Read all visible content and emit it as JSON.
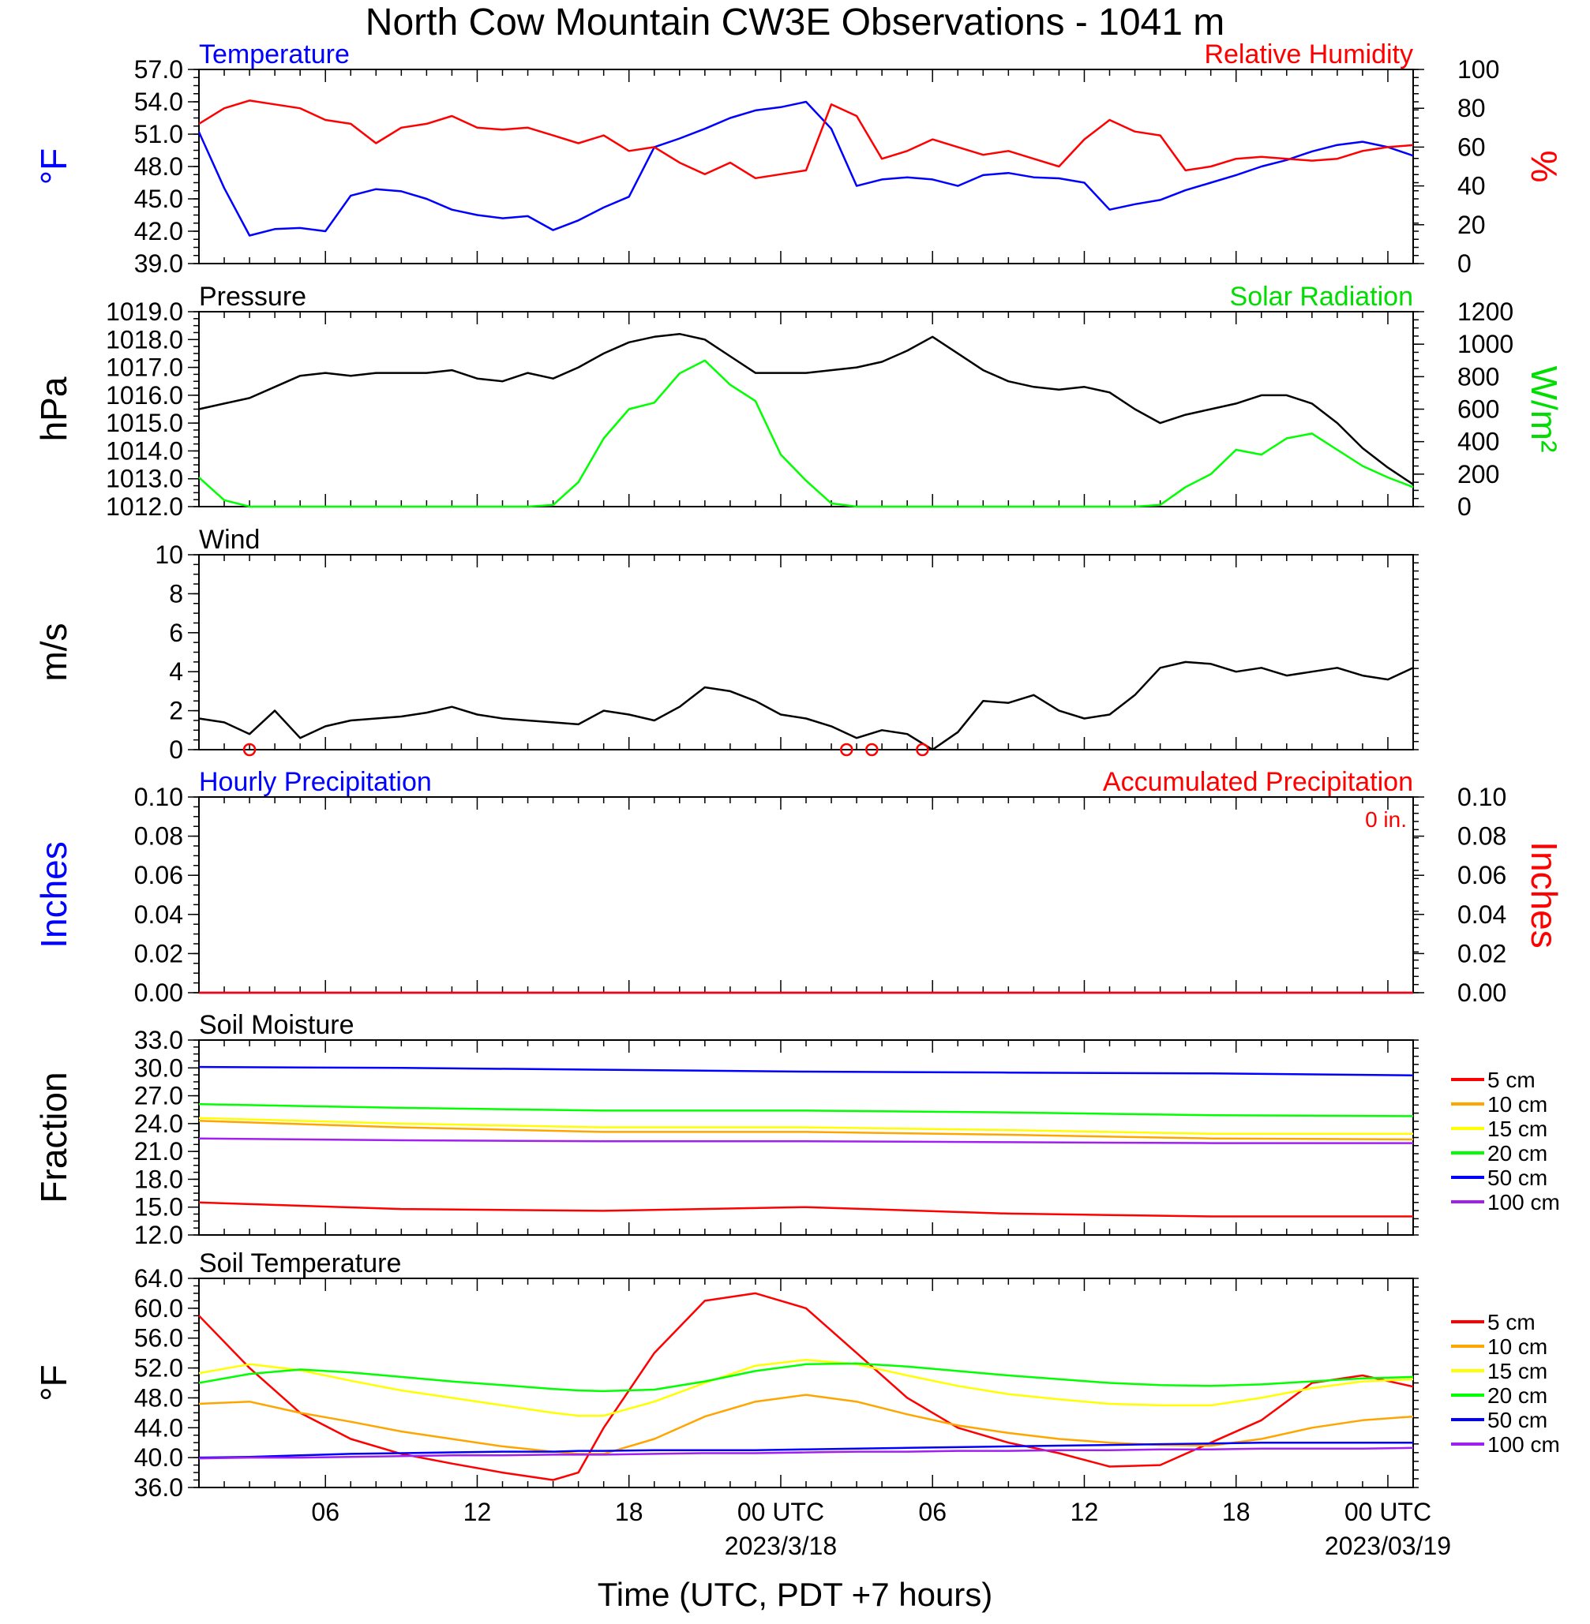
{
  "title": "North Cow Mountain CW3E Observations - 1041 m",
  "xlabel": "Time (UTC, PDT +7 hours)",
  "x_ticks": [
    "06",
    "12",
    "18",
    "00 UTC",
    "06",
    "12",
    "18",
    "00 UTC"
  ],
  "date_labels": [
    "2023/3/18",
    "2023/03/19"
  ],
  "chart_data": [
    {
      "type": "line",
      "panel": "temperature-humidity",
      "title_left": "Temperature",
      "title_right": "Relative Humidity",
      "ylabel_left": "°F",
      "ylabel_right": "%",
      "ylim_left": [
        39.0,
        57.0
      ],
      "ylim_right": [
        0,
        100
      ],
      "yticks_left": [
        "39.0",
        "42.0",
        "45.0",
        "48.0",
        "51.0",
        "54.0",
        "57.0"
      ],
      "yticks_right": [
        "0",
        "20",
        "40",
        "60",
        "80",
        "100"
      ],
      "x_hours": [
        1,
        2,
        3,
        4,
        5,
        6,
        7,
        8,
        9,
        10,
        11,
        12,
        13,
        14,
        15,
        16,
        17,
        18,
        19,
        20,
        21,
        22,
        23,
        24,
        25,
        26,
        27,
        28,
        29,
        30,
        31,
        32,
        33,
        34,
        35,
        36,
        37,
        38,
        39,
        40,
        41,
        42,
        43,
        44,
        45,
        46,
        47,
        48,
        49
      ],
      "series": [
        {
          "name": "Temperature",
          "axis": "left",
          "color": "#0000ff",
          "values": [
            51.2,
            46.0,
            41.6,
            42.2,
            42.3,
            42.0,
            45.3,
            45.9,
            45.7,
            45.0,
            44.0,
            43.5,
            43.2,
            43.4,
            42.1,
            43.0,
            44.2,
            45.2,
            49.8,
            50.6,
            51.5,
            52.5,
            53.2,
            53.5,
            54.0,
            51.5,
            46.2,
            46.8,
            47.0,
            46.8,
            46.2,
            47.2,
            47.4,
            47.0,
            46.9,
            46.5,
            44.0,
            44.5,
            44.9,
            45.8,
            46.5,
            47.2,
            48.0,
            48.6,
            49.4,
            50.0,
            50.3,
            49.8,
            49.0
          ]
        },
        {
          "name": "Relative Humidity",
          "axis": "right",
          "color": "#ff0000",
          "values": [
            72,
            80,
            84,
            82,
            80,
            74,
            72,
            62,
            70,
            72,
            76,
            70,
            69,
            70,
            66,
            62,
            66,
            58,
            60,
            52,
            46,
            52,
            44,
            46,
            48,
            82,
            76,
            54,
            58,
            64,
            60,
            56,
            58,
            54,
            50,
            64,
            74,
            68,
            66,
            48,
            50,
            54,
            55,
            54,
            53,
            54,
            58,
            60,
            61
          ]
        }
      ]
    },
    {
      "type": "line",
      "panel": "pressure-solar",
      "title_left": "Pressure",
      "title_right": "Solar Radiation",
      "ylabel_left": "hPa",
      "ylabel_right": "W/m²",
      "ylim_left": [
        1012.0,
        1019.0
      ],
      "ylim_right": [
        0,
        1200
      ],
      "yticks_left": [
        "1012.0",
        "1013.0",
        "1014.0",
        "1015.0",
        "1016.0",
        "1017.0",
        "1018.0",
        "1019.0"
      ],
      "yticks_right": [
        "0",
        "200",
        "400",
        "600",
        "800",
        "1000",
        "1200"
      ],
      "x_hours": [
        1,
        2,
        3,
        4,
        5,
        6,
        7,
        8,
        9,
        10,
        11,
        12,
        13,
        14,
        15,
        16,
        17,
        18,
        19,
        20,
        21,
        22,
        23,
        24,
        25,
        26,
        27,
        28,
        29,
        30,
        31,
        32,
        33,
        34,
        35,
        36,
        37,
        38,
        39,
        40,
        41,
        42,
        43,
        44,
        45,
        46,
        47,
        48,
        49
      ],
      "series": [
        {
          "name": "Pressure",
          "axis": "left",
          "color": "#000000",
          "values": [
            1015.5,
            1015.7,
            1015.9,
            1016.3,
            1016.7,
            1016.8,
            1016.7,
            1016.8,
            1016.8,
            1016.8,
            1016.9,
            1016.6,
            1016.5,
            1016.8,
            1016.6,
            1017.0,
            1017.5,
            1017.9,
            1018.1,
            1018.2,
            1018.0,
            1017.4,
            1016.8,
            1016.8,
            1016.8,
            1016.9,
            1017.0,
            1017.2,
            1017.6,
            1018.1,
            1017.5,
            1016.9,
            1016.5,
            1016.3,
            1016.2,
            1016.3,
            1016.1,
            1015.5,
            1015.0,
            1015.3,
            1015.5,
            1015.7,
            1016.0,
            1016.0,
            1015.7,
            1015.0,
            1014.1,
            1013.4,
            1012.8
          ]
        },
        {
          "name": "Solar Radiation",
          "axis": "right",
          "color": "#00ff00",
          "values": [
            180,
            40,
            0,
            0,
            0,
            0,
            0,
            0,
            0,
            0,
            0,
            0,
            0,
            0,
            10,
            150,
            420,
            600,
            640,
            820,
            900,
            750,
            650,
            320,
            160,
            20,
            0,
            0,
            0,
            0,
            0,
            0,
            0,
            0,
            0,
            0,
            0,
            0,
            10,
            120,
            200,
            350,
            320,
            420,
            450,
            350,
            250,
            180,
            120
          ]
        }
      ]
    },
    {
      "type": "line",
      "panel": "wind",
      "title_left": "Wind",
      "ylabel_left": "m/s",
      "ylim_left": [
        0,
        10
      ],
      "yticks_left": [
        "0",
        "2",
        "4",
        "6",
        "8",
        "10"
      ],
      "x_hours": [
        1,
        2,
        3,
        4,
        5,
        6,
        7,
        8,
        9,
        10,
        11,
        12,
        13,
        14,
        15,
        16,
        17,
        18,
        19,
        20,
        21,
        22,
        23,
        24,
        25,
        26,
        27,
        28,
        29,
        30,
        31,
        32,
        33,
        34,
        35,
        36,
        37,
        38,
        39,
        40,
        41,
        42,
        43,
        44,
        45,
        46,
        47,
        48,
        49
      ],
      "series": [
        {
          "name": "Wind speed",
          "axis": "left",
          "color": "#000000",
          "values": [
            1.6,
            1.4,
            0.8,
            2.0,
            0.6,
            1.2,
            1.5,
            1.6,
            1.7,
            1.9,
            2.2,
            1.8,
            1.6,
            1.5,
            1.4,
            1.3,
            2.0,
            1.8,
            1.5,
            2.2,
            3.2,
            3.0,
            2.5,
            1.8,
            1.6,
            1.2,
            0.6,
            1.0,
            0.8,
            0.0,
            0.9,
            2.5,
            2.4,
            2.8,
            2.0,
            1.6,
            1.8,
            2.8,
            4.2,
            4.5,
            4.4,
            4.0,
            4.2,
            3.8,
            4.0,
            4.2,
            3.8,
            3.6,
            4.2
          ]
        }
      ],
      "calm_markers_hours": [
        3.0,
        26.6,
        27.6,
        29.6
      ]
    },
    {
      "type": "line",
      "panel": "precipitation",
      "title_left": "Hourly Precipitation",
      "title_right": "Accumulated Precipitation",
      "annotation": "0 in.",
      "ylabel_left": "Inches",
      "ylabel_right": "Inches",
      "ylim_left": [
        0.0,
        0.1
      ],
      "ylim_right": [
        0.0,
        0.1
      ],
      "yticks_left": [
        "0.00",
        "0.02",
        "0.04",
        "0.06",
        "0.08",
        "0.10"
      ],
      "yticks_right": [
        "0.00",
        "0.02",
        "0.04",
        "0.06",
        "0.08",
        "0.10"
      ],
      "x_hours": [
        1,
        49
      ],
      "series": [
        {
          "name": "Hourly Precipitation",
          "axis": "left",
          "color": "#0000ff",
          "values": [
            0.0,
            0.0
          ]
        },
        {
          "name": "Accumulated Precipitation",
          "axis": "right",
          "color": "#ff0000",
          "values": [
            0.0,
            0.0
          ]
        }
      ]
    },
    {
      "type": "line",
      "panel": "soil-moisture",
      "title_left": "Soil Moisture",
      "ylabel_left": "Fraction",
      "ylim_left": [
        12.0,
        33.0
      ],
      "yticks_left": [
        "12.0",
        "15.0",
        "18.0",
        "21.0",
        "24.0",
        "27.0",
        "30.0",
        "33.0"
      ],
      "x_hours": [
        1,
        9,
        17,
        25,
        33,
        41,
        49
      ],
      "legend": [
        "5 cm",
        "10 cm",
        "15 cm",
        "20 cm",
        "50 cm",
        "100 cm"
      ],
      "series": [
        {
          "name": "5 cm",
          "color": "#ff0000",
          "values": [
            15.5,
            14.8,
            14.6,
            15.0,
            14.3,
            14.0,
            14.0
          ]
        },
        {
          "name": "10 cm",
          "color": "#ffa500",
          "values": [
            24.3,
            23.6,
            23.1,
            23.1,
            22.8,
            22.4,
            22.3
          ]
        },
        {
          "name": "15 cm",
          "color": "#ffff00",
          "values": [
            24.6,
            24.0,
            23.6,
            23.6,
            23.3,
            22.9,
            22.9
          ]
        },
        {
          "name": "20 cm",
          "color": "#00ff00",
          "values": [
            26.1,
            25.7,
            25.4,
            25.4,
            25.2,
            24.9,
            24.8
          ]
        },
        {
          "name": "50 cm",
          "color": "#0000ff",
          "values": [
            30.1,
            30.0,
            29.8,
            29.6,
            29.5,
            29.4,
            29.2
          ]
        },
        {
          "name": "100 cm",
          "color": "#a020f0",
          "values": [
            22.4,
            22.2,
            22.1,
            22.1,
            22.0,
            21.9,
            21.9
          ]
        }
      ]
    },
    {
      "type": "line",
      "panel": "soil-temperature",
      "title_left": "Soil Temperature",
      "ylabel_left": "°F",
      "ylim_left": [
        36.0,
        64.0
      ],
      "yticks_left": [
        "36.0",
        "40.0",
        "44.0",
        "48.0",
        "52.0",
        "56.0",
        "60.0",
        "64.0"
      ],
      "x_hours": [
        1,
        3,
        5,
        7,
        9,
        11,
        13,
        15,
        16,
        17,
        19,
        21,
        23,
        25,
        27,
        29,
        31,
        33,
        35,
        37,
        39,
        41,
        43,
        45,
        47,
        49
      ],
      "legend": [
        "5 cm",
        "10 cm",
        "15 cm",
        "20 cm",
        "50 cm",
        "100 cm"
      ],
      "series": [
        {
          "name": "5 cm",
          "color": "#ff0000",
          "values": [
            59.0,
            52.0,
            46.0,
            42.5,
            40.5,
            39.2,
            38.0,
            37.0,
            38.0,
            44.0,
            54.0,
            61.0,
            62.0,
            60.0,
            54.0,
            48.0,
            44.0,
            42.0,
            40.6,
            38.8,
            39.0,
            42.0,
            45.0,
            50.0,
            51.0,
            49.5
          ]
        },
        {
          "name": "10 cm",
          "color": "#ffa500",
          "values": [
            47.2,
            47.5,
            46.0,
            44.8,
            43.5,
            42.5,
            41.5,
            40.8,
            40.5,
            40.5,
            42.5,
            45.5,
            47.5,
            48.4,
            47.5,
            45.8,
            44.3,
            43.3,
            42.5,
            42.0,
            41.7,
            41.6,
            42.5,
            44.0,
            45.0,
            45.5
          ]
        },
        {
          "name": "15 cm",
          "color": "#ffff00",
          "values": [
            51.3,
            52.5,
            51.7,
            50.3,
            49.0,
            48.0,
            47.0,
            46.0,
            45.6,
            45.6,
            47.5,
            50.0,
            52.3,
            53.1,
            52.5,
            51.0,
            49.6,
            48.5,
            47.8,
            47.2,
            47.0,
            47.0,
            48.0,
            49.3,
            50.2,
            50.5
          ]
        },
        {
          "name": "20 cm",
          "color": "#00ff00",
          "values": [
            50.0,
            51.2,
            51.8,
            51.4,
            50.8,
            50.2,
            49.7,
            49.2,
            49.0,
            48.9,
            49.1,
            50.2,
            51.6,
            52.5,
            52.6,
            52.2,
            51.6,
            51.0,
            50.5,
            50.0,
            49.7,
            49.6,
            49.8,
            50.2,
            50.6,
            50.8
          ]
        },
        {
          "name": "50 cm",
          "color": "#0000ff",
          "values": [
            40.0,
            40.1,
            40.3,
            40.5,
            40.6,
            40.7,
            40.8,
            40.8,
            40.9,
            40.9,
            41.0,
            41.0,
            41.0,
            41.1,
            41.2,
            41.3,
            41.4,
            41.5,
            41.6,
            41.7,
            41.8,
            41.9,
            42.0,
            42.0,
            42.0,
            42.0
          ]
        },
        {
          "name": "100 cm",
          "color": "#a020f0",
          "values": [
            39.9,
            40.0,
            40.0,
            40.1,
            40.2,
            40.3,
            40.3,
            40.4,
            40.4,
            40.4,
            40.5,
            40.6,
            40.6,
            40.7,
            40.8,
            40.8,
            40.9,
            40.9,
            41.0,
            41.0,
            41.1,
            41.1,
            41.2,
            41.2,
            41.2,
            41.3
          ]
        }
      ]
    }
  ]
}
